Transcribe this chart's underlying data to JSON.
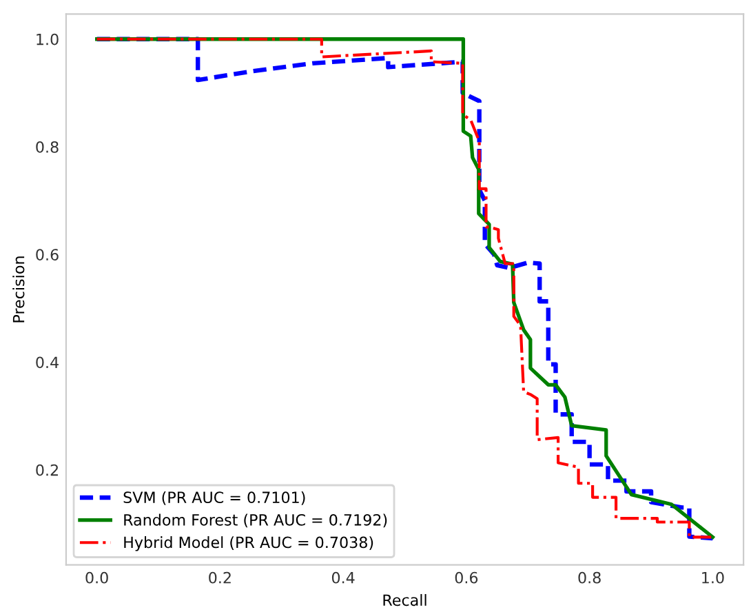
{
  "chart_data": {
    "type": "line",
    "xlabel": "Recall",
    "ylabel": "Precision",
    "xlim": [
      -0.05,
      1.05
    ],
    "ylim": [
      0.0235,
      1.0465
    ],
    "xticks": [
      {
        "value": 0,
        "label": "0.0"
      },
      0.2,
      0.4,
      0.6,
      0.8,
      {
        "value": 1,
        "label": "1.0"
      }
    ],
    "yticks": [
      0.2,
      0.4,
      0.6,
      0.8,
      {
        "value": 1,
        "label": "1.0"
      }
    ],
    "grid": false,
    "legend": "bottom left",
    "series": [
      {
        "name": "SVM (PR AUC = 0.7101)",
        "color": "#0000ff",
        "line_style": "dashed",
        "x": [
          0.0,
          0.164,
          0.164,
          0.25,
          0.35,
          0.45,
          0.473,
          0.473,
          0.594,
          0.594,
          0.621,
          0.621,
          0.63,
          0.63,
          0.645,
          0.65,
          0.67,
          0.7,
          0.719,
          0.719,
          0.733,
          0.733,
          0.745,
          0.745,
          0.771,
          0.771,
          0.8,
          0.8,
          0.83,
          0.83,
          0.86,
          0.86,
          0.9,
          0.9,
          0.95,
          0.962,
          0.962,
          1.0
        ],
        "values": [
          1.0,
          1.0,
          0.924,
          0.94,
          0.955,
          0.963,
          0.965,
          0.948,
          0.958,
          0.9,
          0.885,
          0.72,
          0.7,
          0.62,
          0.6,
          0.58,
          0.575,
          0.585,
          0.583,
          0.513,
          0.513,
          0.396,
          0.396,
          0.303,
          0.303,
          0.252,
          0.252,
          0.21,
          0.21,
          0.18,
          0.18,
          0.16,
          0.16,
          0.14,
          0.13,
          0.13,
          0.076,
          0.073
        ]
      },
      {
        "name": "Random Forest (PR AUC = 0.7192)",
        "color": "#008000",
        "line_style": "solid",
        "x": [
          0.0,
          0.595,
          0.595,
          0.607,
          0.61,
          0.62,
          0.62,
          0.637,
          0.637,
          0.655,
          0.675,
          0.677,
          0.693,
          0.704,
          0.704,
          0.733,
          0.745,
          0.76,
          0.771,
          0.827,
          0.827,
          0.868,
          0.933,
          1.0
        ],
        "values": [
          1.0,
          1.0,
          0.829,
          0.82,
          0.78,
          0.758,
          0.676,
          0.656,
          0.613,
          0.587,
          0.582,
          0.511,
          0.46,
          0.442,
          0.389,
          0.358,
          0.358,
          0.335,
          0.282,
          0.274,
          0.226,
          0.154,
          0.136,
          0.075
        ]
      },
      {
        "name": "Hybrid Model (PR AUC = 0.7038)",
        "color": "#ff0000",
        "line_style": "dashdot",
        "x": [
          0.0,
          0.365,
          0.365,
          0.543,
          0.543,
          0.594,
          0.594,
          0.607,
          0.621,
          0.621,
          0.632,
          0.632,
          0.637,
          0.652,
          0.652,
          0.663,
          0.677,
          0.677,
          0.688,
          0.693,
          0.704,
          0.715,
          0.715,
          0.749,
          0.749,
          0.782,
          0.782,
          0.805,
          0.805,
          0.843,
          0.843,
          0.91,
          0.91,
          0.962,
          0.962,
          1.0
        ],
        "values": [
          1.0,
          1.0,
          0.967,
          0.978,
          0.958,
          0.955,
          0.86,
          0.85,
          0.81,
          0.722,
          0.722,
          0.651,
          0.651,
          0.646,
          0.63,
          0.583,
          0.583,
          0.485,
          0.468,
          0.345,
          0.34,
          0.332,
          0.256,
          0.26,
          0.213,
          0.205,
          0.175,
          0.175,
          0.149,
          0.149,
          0.11,
          0.11,
          0.103,
          0.103,
          0.075,
          0.075
        ]
      }
    ]
  }
}
